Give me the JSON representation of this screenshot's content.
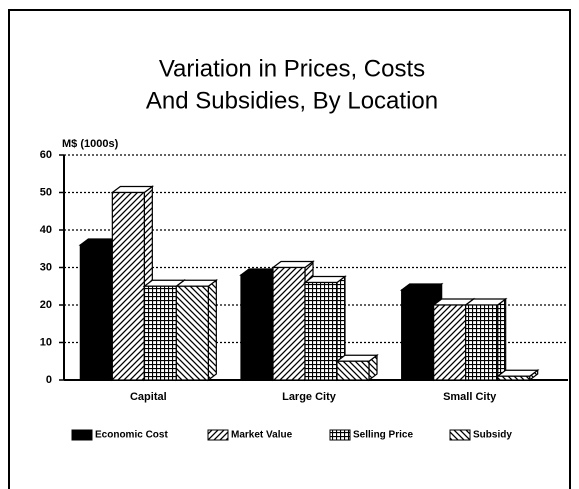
{
  "chart_data": {
    "type": "bar3d",
    "title": [
      "Variation in Prices, Costs",
      "And Subsidies, By Location"
    ],
    "y_label": "M$ (1000s)",
    "categories": [
      "Capital",
      "Large City",
      "Small City"
    ],
    "series": [
      {
        "name": "Economic Cost",
        "pattern": "solid",
        "values": [
          36,
          28,
          24
        ]
      },
      {
        "name": "Market Value",
        "pattern": "diagonal",
        "values": [
          50,
          30,
          20
        ]
      },
      {
        "name": "Selling Price",
        "pattern": "grid",
        "values": [
          25,
          26,
          20
        ]
      },
      {
        "name": "Subsidy",
        "pattern": "backdiagonal",
        "values": [
          25,
          5,
          1
        ]
      }
    ],
    "ylim": [
      0,
      60
    ],
    "yticks": [
      0,
      10,
      20,
      30,
      40,
      50,
      60
    ],
    "grid": true,
    "legend": "bottom"
  }
}
